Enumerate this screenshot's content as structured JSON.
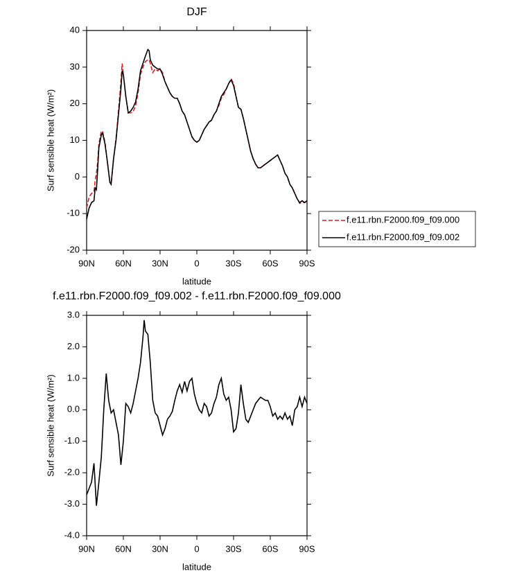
{
  "chart_data": [
    {
      "type": "line",
      "title": "DJF",
      "xlabel": "latitude",
      "ylabel": "Surf sensible heat (W/m²)",
      "x": [
        90,
        88,
        86,
        84,
        83,
        82,
        81,
        80,
        78,
        77,
        75,
        73,
        71,
        70,
        68,
        66,
        64,
        62,
        61,
        60,
        58,
        56,
        54,
        52,
        50,
        48,
        46,
        44,
        42,
        40,
        39,
        38,
        36,
        34,
        32,
        30,
        28,
        26,
        24,
        22,
        20,
        18,
        16,
        14,
        12,
        10,
        8,
        6,
        4,
        2,
        0,
        -2,
        -4,
        -6,
        -8,
        -10,
        -12,
        -14,
        -16,
        -18,
        -20,
        -22,
        -24,
        -26,
        -28,
        -30,
        -32,
        -34,
        -36,
        -38,
        -40,
        -42,
        -44,
        -46,
        -48,
        -50,
        -52,
        -54,
        -56,
        -58,
        -60,
        -62,
        -64,
        -66,
        -68,
        -70,
        -72,
        -74,
        -76,
        -78,
        -80,
        -82,
        -84,
        -86,
        -88,
        -90
      ],
      "series": [
        {
          "name": "f.e11.rbn.F2000.f09_f09.000",
          "color": "#e0191c",
          "dash": true,
          "values": [
            -8.5,
            -5.5,
            -4.5,
            -4,
            -1,
            1,
            4,
            9,
            12.5,
            12.5,
            9.5,
            4,
            -1.5,
            -2,
            5,
            10.5,
            18,
            26,
            31,
            28,
            22,
            17.5,
            17.5,
            17.8,
            19.5,
            23,
            28,
            30,
            31.5,
            32,
            32,
            31,
            28.5,
            29.5,
            29,
            29.5,
            28.5,
            26,
            24.5,
            23,
            22,
            21.5,
            21.5,
            20,
            18,
            17,
            15,
            13,
            11,
            10,
            9.5,
            10,
            11.5,
            13,
            14,
            15,
            15.5,
            17,
            18,
            19.5,
            21.5,
            22.5,
            24,
            25.5,
            26.8,
            25.5,
            22,
            19,
            18.5,
            16,
            13,
            10,
            7,
            5,
            3.5,
            2.5,
            2.5,
            3,
            3.5,
            4,
            4.5,
            5,
            5.5,
            6,
            4.5,
            3,
            1,
            0,
            -2,
            -3,
            -4.5,
            -6,
            -7.2,
            -7,
            -7,
            -6.5
          ]
        },
        {
          "name": "f.e11.rbn.F2000.f09_f09.002",
          "color": "#000000",
          "dash": false,
          "values": [
            -11.5,
            -8.5,
            -7,
            -6.5,
            -3,
            -3.5,
            2,
            8,
            11.5,
            12,
            9,
            4,
            -1.5,
            -2,
            5,
            10,
            17,
            24,
            29,
            28,
            22,
            17.5,
            18,
            19,
            20.5,
            24,
            29,
            31,
            33,
            34.8,
            34.5,
            32,
            30.5,
            30,
            29.5,
            29.5,
            28,
            26,
            24.5,
            23,
            22,
            21.5,
            21.5,
            20,
            18,
            17,
            15,
            13,
            11,
            10,
            9.5,
            10,
            11.5,
            13,
            14,
            15,
            15.5,
            17,
            18,
            20,
            22,
            23,
            24,
            25.5,
            26.5,
            25,
            22,
            19,
            18.5,
            16,
            13,
            10,
            7,
            5,
            3.5,
            2.5,
            2.5,
            3,
            3.5,
            4,
            4.5,
            5,
            5.5,
            6,
            4.5,
            3,
            1,
            0,
            -2,
            -3,
            -4.5,
            -6,
            -7,
            -6.5,
            -7,
            -6.5
          ]
        }
      ],
      "xlim": [
        90,
        -90
      ],
      "xticks": [
        {
          "value": 90,
          "label": "90N"
        },
        {
          "value": 60,
          "label": "60N"
        },
        {
          "value": 30,
          "label": "30N"
        },
        0,
        {
          "value": -30,
          "label": "30S"
        },
        {
          "value": -60,
          "label": "60S"
        },
        {
          "value": -90,
          "label": "90S"
        }
      ],
      "ylim": [
        -20,
        40
      ],
      "yticks": [
        -20,
        -10,
        0,
        10,
        20,
        30,
        40
      ],
      "legend": "right"
    },
    {
      "type": "line",
      "title": "f.e11.rbn.F2000.f09_f09.002 - f.e11.rbn.F2000.f09_f09.000",
      "xlabel": "latitude",
      "ylabel": "Surf sensible heat (W/m²)",
      "x": [
        90,
        88,
        86,
        84,
        82,
        80,
        78,
        76,
        74,
        72,
        70,
        68,
        66,
        64,
        62,
        60,
        58,
        56,
        54,
        52,
        50,
        48,
        46,
        44,
        43,
        42,
        40,
        38,
        36,
        34,
        32,
        30,
        28,
        26,
        24,
        22,
        20,
        18,
        16,
        14,
        12,
        10,
        8,
        6,
        4,
        2,
        0,
        -2,
        -4,
        -6,
        -8,
        -10,
        -12,
        -14,
        -16,
        -18,
        -20,
        -22,
        -24,
        -26,
        -28,
        -30,
        -32,
        -34,
        -36,
        -38,
        -40,
        -42,
        -44,
        -46,
        -48,
        -50,
        -52,
        -54,
        -56,
        -58,
        -60,
        -62,
        -64,
        -66,
        -68,
        -70,
        -72,
        -74,
        -76,
        -78,
        -80,
        -82,
        -84,
        -86,
        -88,
        -90
      ],
      "values": [
        -2.7,
        -2.5,
        -2.3,
        -1.7,
        -3.05,
        -2.3,
        -1.5,
        0,
        1.15,
        0.3,
        -0.1,
        0,
        -0.4,
        -0.8,
        -1.75,
        -1.0,
        0.2,
        0.1,
        -0.1,
        0.2,
        0.6,
        1.0,
        1.5,
        2.3,
        2.85,
        2.5,
        2.4,
        1.5,
        0.3,
        -0.1,
        -0.2,
        -0.5,
        -0.8,
        -0.6,
        -0.3,
        -0.2,
        -0.05,
        0.3,
        0.6,
        0.8,
        0.55,
        0.9,
        0.6,
        0.9,
        1.0,
        0.5,
        0.2,
        0,
        -0.1,
        0.2,
        0.1,
        -0.2,
        -0.1,
        0.2,
        0.4,
        0.8,
        1.0,
        0.5,
        0.3,
        0.4,
        0,
        -0.7,
        -0.6,
        -0.1,
        0.8,
        0.2,
        -0.3,
        -0.4,
        -0.2,
        0,
        0.2,
        0.3,
        0.4,
        0.35,
        0.3,
        0.3,
        0.1,
        -0.2,
        -0.1,
        -0.3,
        -0.2,
        -0.3,
        -0.1,
        -0.3,
        -0.2,
        -0.5,
        0,
        0.1,
        0.4,
        0.1,
        0.4,
        0.2
      ],
      "color": "#000000",
      "xlim": [
        90,
        -90
      ],
      "xticks": [
        {
          "value": 90,
          "label": "90N"
        },
        {
          "value": 60,
          "label": "60N"
        },
        {
          "value": 30,
          "label": "30N"
        },
        0,
        {
          "value": -30,
          "label": "30S"
        },
        {
          "value": -60,
          "label": "60S"
        },
        {
          "value": -90,
          "label": "90S"
        }
      ],
      "ylim": [
        -4,
        3
      ],
      "yticks": [
        {
          "value": -4,
          "label": "-4.0"
        },
        {
          "value": -3,
          "label": "-3.0"
        },
        {
          "value": -2,
          "label": "-2.0"
        },
        {
          "value": -1,
          "label": "-1.0"
        },
        {
          "value": 0,
          "label": "0.0"
        },
        {
          "value": 1,
          "label": "1.0"
        },
        {
          "value": 2,
          "label": "2.0"
        },
        {
          "value": 3,
          "label": "3.0"
        }
      ]
    }
  ]
}
